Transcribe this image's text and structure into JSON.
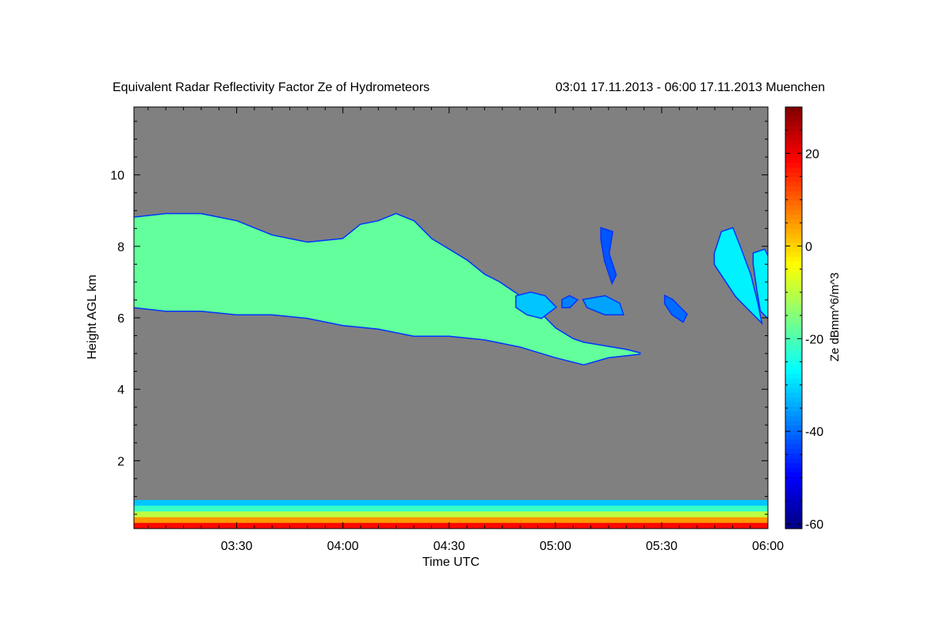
{
  "chart_data": {
    "type": "heatmap",
    "title": "Equivalent Radar Reflectivity Factor Ze of Hydrometeors",
    "subtitle": "03:01 17.11.2013 - 06:00 17.11.2013 Muenchen",
    "xlabel": "Time UTC",
    "ylabel": "Height AGL km",
    "x_range_minutes_utc": [
      181,
      360
    ],
    "x_ticks": [
      {
        "value": 210,
        "label": "03:30"
      },
      {
        "value": 240,
        "label": "04:00"
      },
      {
        "value": 270,
        "label": "04:30"
      },
      {
        "value": 300,
        "label": "05:00"
      },
      {
        "value": 330,
        "label": "05:30"
      },
      {
        "value": 360,
        "label": "06:00"
      }
    ],
    "ylim": [
      0.1,
      11.9
    ],
    "y_ticks": [
      {
        "value": 2,
        "label": "2"
      },
      {
        "value": 4,
        "label": "4"
      },
      {
        "value": 6,
        "label": "6"
      },
      {
        "value": 8,
        "label": "8"
      },
      {
        "value": 10,
        "label": "10"
      }
    ],
    "background_color": "#808080",
    "colorbar": {
      "label": "Ze dBmm^6/m^3",
      "range": [
        -61,
        30
      ],
      "ticks": [
        {
          "value": 20,
          "label": "20"
        },
        {
          "value": 0,
          "label": "0"
        },
        {
          "value": -20,
          "label": "-20"
        },
        {
          "value": -40,
          "label": "-40"
        },
        {
          "value": -60,
          "label": "-60"
        }
      ],
      "colormap": "jet"
    },
    "echo_regions": [
      {
        "name": "main-cloud-layer",
        "ze_dbz": -18,
        "top": [
          [
            181,
            8.8
          ],
          [
            190,
            8.9
          ],
          [
            200,
            8.9
          ],
          [
            210,
            8.7
          ],
          [
            220,
            8.3
          ],
          [
            230,
            8.1
          ],
          [
            240,
            8.2
          ],
          [
            245,
            8.6
          ],
          [
            250,
            8.7
          ],
          [
            255,
            8.9
          ],
          [
            260,
            8.7
          ],
          [
            265,
            8.2
          ],
          [
            270,
            7.9
          ],
          [
            275,
            7.6
          ],
          [
            280,
            7.2
          ],
          [
            284,
            7.0
          ],
          [
            290,
            6.6
          ],
          [
            295,
            6.2
          ],
          [
            300,
            5.7
          ],
          [
            305,
            5.4
          ],
          [
            308,
            5.3
          ],
          [
            314,
            5.2
          ],
          [
            320,
            5.1
          ],
          [
            324,
            5.0
          ]
        ],
        "base": [
          [
            324,
            5.0
          ],
          [
            315,
            4.9
          ],
          [
            308,
            4.7
          ],
          [
            300,
            4.9
          ],
          [
            290,
            5.2
          ],
          [
            280,
            5.4
          ],
          [
            270,
            5.5
          ],
          [
            260,
            5.5
          ],
          [
            250,
            5.7
          ],
          [
            240,
            5.8
          ],
          [
            230,
            6.0
          ],
          [
            220,
            6.1
          ],
          [
            210,
            6.1
          ],
          [
            200,
            6.2
          ],
          [
            190,
            6.2
          ],
          [
            181,
            6.3
          ]
        ]
      },
      {
        "name": "small-cell-1",
        "ze_dbz": -32,
        "top": [
          [
            289,
            6.6
          ],
          [
            293,
            6.7
          ],
          [
            297,
            6.6
          ],
          [
            300,
            6.3
          ]
        ],
        "base": [
          [
            300,
            6.3
          ],
          [
            296,
            6.0
          ],
          [
            292,
            6.1
          ],
          [
            289,
            6.3
          ]
        ]
      },
      {
        "name": "small-cell-2",
        "ze_dbz": -38,
        "top": [
          [
            302,
            6.5
          ],
          [
            304,
            6.6
          ],
          [
            306,
            6.5
          ]
        ],
        "base": [
          [
            306,
            6.5
          ],
          [
            304,
            6.3
          ],
          [
            302,
            6.3
          ]
        ]
      },
      {
        "name": "small-cell-3",
        "ze_dbz": -35,
        "top": [
          [
            308,
            6.5
          ],
          [
            314,
            6.6
          ],
          [
            318,
            6.4
          ],
          [
            319,
            6.1
          ]
        ],
        "base": [
          [
            319,
            6.1
          ],
          [
            314,
            6.1
          ],
          [
            309,
            6.3
          ],
          [
            308,
            6.5
          ]
        ]
      },
      {
        "name": "fallstreak-cell",
        "ze_dbz": -42,
        "top": [
          [
            313,
            8.5
          ],
          [
            316,
            8.4
          ],
          [
            315,
            7.8
          ],
          [
            317,
            7.2
          ],
          [
            316,
            7.0
          ]
        ],
        "base": [
          [
            316,
            7.0
          ],
          [
            314,
            7.6
          ],
          [
            313,
            8.2
          ]
        ]
      },
      {
        "name": "cell-534",
        "ze_dbz": -40,
        "top": [
          [
            331,
            6.6
          ],
          [
            333,
            6.5
          ],
          [
            337,
            6.1
          ],
          [
            336,
            5.9
          ]
        ],
        "base": [
          [
            336,
            5.9
          ],
          [
            333,
            6.1
          ],
          [
            331,
            6.4
          ]
        ]
      },
      {
        "name": "right-cloud-1",
        "ze_dbz": -28,
        "top": [
          [
            345,
            7.8
          ],
          [
            347,
            8.4
          ],
          [
            350,
            8.5
          ],
          [
            352,
            8.0
          ],
          [
            355,
            7.2
          ],
          [
            357,
            6.4
          ],
          [
            358,
            5.9
          ]
        ],
        "base": [
          [
            358,
            5.9
          ],
          [
            356,
            6.1
          ],
          [
            351,
            6.6
          ],
          [
            347,
            7.2
          ],
          [
            345,
            7.5
          ]
        ]
      },
      {
        "name": "right-cloud-2",
        "ze_dbz": -28,
        "top": [
          [
            356,
            7.8
          ],
          [
            359,
            7.9
          ],
          [
            360,
            7.7
          ],
          [
            360,
            6.0
          ]
        ],
        "base": [
          [
            360,
            6.0
          ],
          [
            358,
            6.2
          ],
          [
            357,
            6.8
          ],
          [
            356,
            7.5
          ]
        ]
      }
    ],
    "boundary_layer": {
      "top_km": 0.9,
      "base_km": 0.1,
      "ze_dbz_range": [
        -35,
        25
      ]
    }
  }
}
